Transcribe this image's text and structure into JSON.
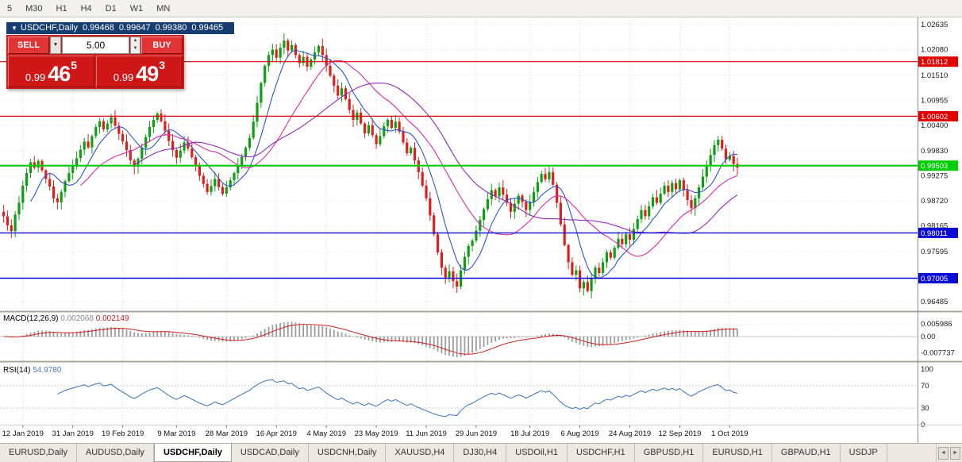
{
  "toolbar": {
    "periods": [
      "5",
      "M30",
      "H1",
      "H4",
      "D1",
      "W1",
      "MN"
    ]
  },
  "header": {
    "collapse_icon": "▼",
    "symbol": "USDCHF,Daily",
    "open": "0.99468",
    "high": "0.99647",
    "low": "0.99380",
    "close": "0.99465"
  },
  "trade_panel": {
    "sell_label": "SELL",
    "buy_label": "BUY",
    "volume": "5.00",
    "dropdown_icon": "▼",
    "spin_up": "▲",
    "spin_down": "▼",
    "bid": {
      "prefix": "0.99",
      "big": "46",
      "sup": "5"
    },
    "ask": {
      "prefix": "0.99",
      "big": "49",
      "sup": "3"
    }
  },
  "tabs": {
    "items": [
      "EURUSD,Daily",
      "AUDUSD,Daily",
      "USDCHF,Daily",
      "USDCAD,Daily",
      "USDCNH,Daily",
      "XAUUSD,H4",
      "DJ30,H4",
      "USDOil,H1",
      "USDCHF,H1",
      "GBPUSD,H1",
      "EURUSD,H1",
      "GBPAUD,H1",
      "USDJP"
    ],
    "active_index": 2,
    "scroll_left": "◄",
    "scroll_right": "►"
  },
  "chart_data": {
    "type": "candlestick+indicators",
    "title": "USDCHF,Daily",
    "price_axis": {
      "max": 1.02635,
      "min": 0.96485
    },
    "first_open": 0.9848,
    "closes": [
      0.9838,
      0.9818,
      0.9805,
      0.9842,
      0.9868,
      0.9906,
      0.9934,
      0.9958,
      0.9946,
      0.9961,
      0.994,
      0.9921,
      0.9904,
      0.9878,
      0.9869,
      0.9892,
      0.9916,
      0.9934,
      0.9951,
      0.9967,
      0.9986,
      1.0004,
      0.9991,
      1.0016,
      1.0036,
      1.0049,
      1.0031,
      1.0044,
      1.0058,
      1.0039,
      1.0021,
      1.0004,
      0.9985,
      0.9962,
      0.9948,
      0.9966,
      0.999,
      1.0014,
      1.0036,
      1.0052,
      1.0066,
      1.0049,
      1.0028,
      1.0005,
      0.9985,
      0.9968,
      0.9984,
      1.0002,
      0.9988,
      0.9969,
      0.9949,
      0.9928,
      0.991,
      0.9892,
      0.9905,
      0.9921,
      0.9903,
      0.9888,
      0.9902,
      0.9918,
      0.9934,
      0.9952,
      0.997,
      0.999,
      1.0012,
      1.0048,
      1.009,
      1.0134,
      1.0172,
      1.0196,
      1.0208,
      1.019,
      1.0212,
      1.0228,
      1.0206,
      1.0218,
      1.0196,
      1.0178,
      1.0192,
      1.017,
      1.0186,
      1.0202,
      1.0216,
      1.0196,
      1.0172,
      1.015,
      1.0128,
      1.0106,
      1.0122,
      1.0098,
      1.0074,
      1.0052,
      1.0068,
      1.0044,
      1.0022,
      1.004,
      1.0018,
      0.9998,
      1.0016,
      1.0038,
      1.0052,
      1.0034,
      1.0048,
      1.0026,
      1.0002,
      0.9978,
      0.999,
      0.9962,
      0.9936,
      0.9906,
      0.9878,
      0.984,
      0.9798,
      0.9758,
      0.9724,
      0.9702,
      0.9716,
      0.9694,
      0.9682,
      0.9718,
      0.9748,
      0.9772,
      0.9784,
      0.9806,
      0.983,
      0.9854,
      0.9876,
      0.9896,
      0.9882,
      0.9902,
      0.9886,
      0.9868,
      0.9848,
      0.9866,
      0.9884,
      0.987,
      0.9852,
      0.987,
      0.9892,
      0.9914,
      0.9932,
      0.992,
      0.9936,
      0.9908,
      0.9868,
      0.982,
      0.9774,
      0.9736,
      0.9708,
      0.9718,
      0.9678,
      0.9692,
      0.9672,
      0.97,
      0.9724,
      0.9712,
      0.9736,
      0.9758,
      0.9746,
      0.9768,
      0.9788,
      0.9776,
      0.9798,
      0.9786,
      0.981,
      0.9832,
      0.9852,
      0.9838,
      0.986,
      0.988,
      0.9868,
      0.9888,
      0.9906,
      0.9892,
      0.9912,
      0.9898,
      0.9918,
      0.9896,
      0.9874,
      0.9856,
      0.9878,
      0.9902,
      0.9926,
      0.995,
      0.9974,
      0.9996,
      1.0008,
      0.9988,
      0.9964,
      0.9972,
      0.9954,
      0.9946
    ],
    "date_ticks": [
      {
        "i": 5,
        "label": "12 Jan 2019"
      },
      {
        "i": 18,
        "label": "31 Jan 2019"
      },
      {
        "i": 31,
        "label": "19 Feb 2019"
      },
      {
        "i": 45,
        "label": "9 Mar 2019"
      },
      {
        "i": 58,
        "label": "28 Mar 2019"
      },
      {
        "i": 71,
        "label": "16 Apr 2019"
      },
      {
        "i": 84,
        "label": "4 May 2019"
      },
      {
        "i": 97,
        "label": "23 May 2019"
      },
      {
        "i": 110,
        "label": "11 Jun 2019"
      },
      {
        "i": 123,
        "label": "29 Jun 2019"
      },
      {
        "i": 137,
        "label": "18 Jul 2019"
      },
      {
        "i": 150,
        "label": "6 Aug 2019"
      },
      {
        "i": 163,
        "label": "24 Aug 2019"
      },
      {
        "i": 176,
        "label": "12 Sep 2019"
      },
      {
        "i": 189,
        "label": "1 Oct 2019"
      }
    ],
    "price_ticks": [
      {
        "v": 1.02635,
        "label": "1.02635"
      },
      {
        "v": 1.0208,
        "label": "1.02080"
      },
      {
        "v": 1.0151,
        "label": "1.01510"
      },
      {
        "v": 1.00955,
        "label": "1.00955"
      },
      {
        "v": 1.004,
        "label": "1.00400"
      },
      {
        "v": 0.9983,
        "label": "0.99830"
      },
      {
        "v": 0.99275,
        "label": "0.99275"
      },
      {
        "v": 0.9872,
        "label": "0.98720"
      },
      {
        "v": 0.98165,
        "label": "0.98165"
      },
      {
        "v": 0.97595,
        "label": "0.97595"
      },
      {
        "v": 0.96485,
        "label": "0.96485"
      }
    ],
    "levels": [
      {
        "value": 1.01812,
        "label": "1.01812",
        "color": "#e00000",
        "width": 1.2
      },
      {
        "value": 1.00602,
        "label": "1.00602",
        "color": "#e00000",
        "width": 1.2
      },
      {
        "value": 0.99503,
        "label": "0.99503",
        "color": "#00ce00",
        "width": 2.2
      },
      {
        "value": 0.98011,
        "label": "0.98011",
        "color": "#0b0bd6",
        "width": 1.4
      },
      {
        "value": 0.97005,
        "label": "0.97005",
        "color": "#0b0bd6",
        "width": 1.4
      }
    ],
    "ma": [
      {
        "period": 8,
        "color": "#2e54c8"
      },
      {
        "period": 21,
        "color": "#e02aa8"
      },
      {
        "period": 34,
        "color": "#8e2ab4"
      }
    ],
    "macd": {
      "label": "MACD(12,26,9)",
      "value1": "0.002068",
      "value2": "0.002149",
      "fast": 12,
      "slow": 26,
      "signal": 9,
      "axis": [
        {
          "v": 0.005986,
          "label": "0.005986"
        },
        {
          "v": 0,
          "label": "0.00"
        },
        {
          "v": -0.007737,
          "label": "-0.007737"
        }
      ]
    },
    "rsi": {
      "label": "RSI(14)",
      "value": "54.9780",
      "period": 14,
      "dotted": [
        70,
        30
      ],
      "axis": [
        {
          "v": 100,
          "label": "100"
        },
        {
          "v": 70,
          "label": "70"
        },
        {
          "v": 30,
          "label": "30"
        },
        {
          "v": 0,
          "label": "0"
        }
      ]
    },
    "colors": {
      "up": "#0da012",
      "down": "#dc1f1f",
      "macd_hist": "#9c9c9c",
      "macd_signal": "#d02020",
      "rsi": "#4a7ebb"
    }
  }
}
